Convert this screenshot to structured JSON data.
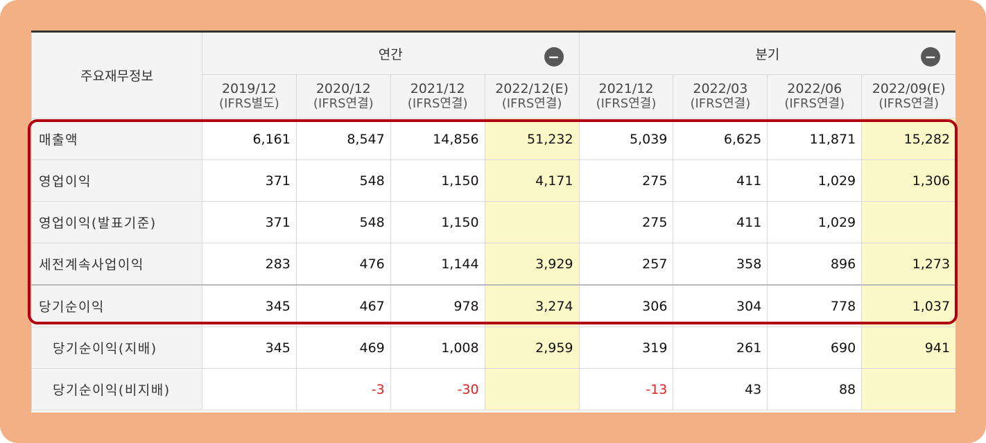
{
  "table": {
    "header_label": "주요재무정보",
    "groups": [
      {
        "label": "연간",
        "toggle": "−"
      },
      {
        "label": "분기",
        "toggle": "−"
      }
    ],
    "periods": [
      {
        "date": "2019/12",
        "basis": "(IFRS별도)"
      },
      {
        "date": "2020/12",
        "basis": "(IFRS연결)"
      },
      {
        "date": "2021/12",
        "basis": "(IFRS연결)"
      },
      {
        "date": "2022/12(E)",
        "basis": "(IFRS연결)"
      },
      {
        "date": "2021/12",
        "basis": "(IFRS연결)"
      },
      {
        "date": "2022/03",
        "basis": "(IFRS연결)"
      },
      {
        "date": "2022/06",
        "basis": "(IFRS연결)"
      },
      {
        "date": "2022/09(E)",
        "basis": "(IFRS연결)"
      }
    ],
    "rows": [
      {
        "label": "매출액",
        "values": [
          "6,161",
          "8,547",
          "14,856",
          "51,232",
          "5,039",
          "6,625",
          "11,871",
          "15,282"
        ]
      },
      {
        "label": "영업이익",
        "values": [
          "371",
          "548",
          "1,150",
          "4,171",
          "275",
          "411",
          "1,029",
          "1,306"
        ]
      },
      {
        "label": "영업이익(발표기준)",
        "values": [
          "371",
          "548",
          "1,150",
          "",
          "275",
          "411",
          "1,029",
          ""
        ]
      },
      {
        "label": "세전계속사업이익",
        "values": [
          "283",
          "476",
          "1,144",
          "3,929",
          "257",
          "358",
          "896",
          "1,273"
        ]
      },
      {
        "label": "당기순이익",
        "values": [
          "345",
          "467",
          "978",
          "3,274",
          "306",
          "304",
          "778",
          "1,037"
        ]
      },
      {
        "label": "당기순이익(지배)",
        "values": [
          "345",
          "469",
          "1,008",
          "2,959",
          "319",
          "261",
          "690",
          "941"
        ]
      },
      {
        "label": "당기순이익(비지배)",
        "values": [
          "",
          "-3",
          "-30",
          "",
          "-13",
          "43",
          "88",
          ""
        ]
      }
    ]
  },
  "colors": {
    "frame": "#f3b084",
    "highlight_border": "#b00012",
    "estimate_fill": "#fdf8c8",
    "negative_text": "#e02020"
  }
}
